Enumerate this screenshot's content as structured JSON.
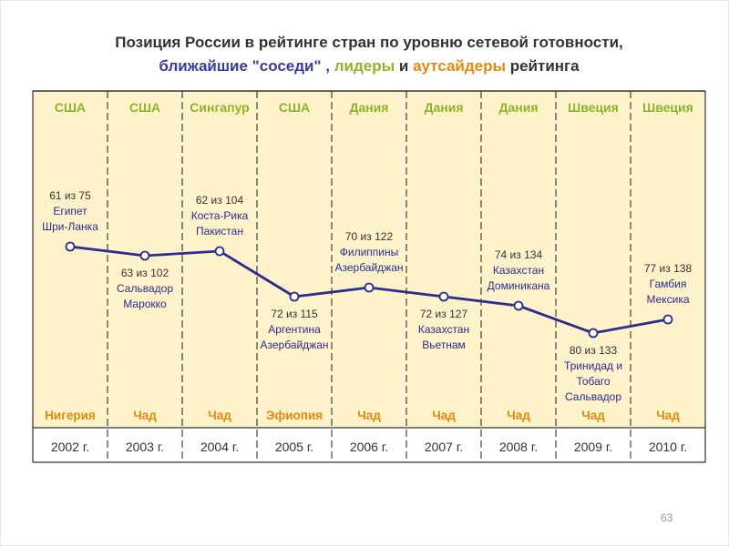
{
  "title": {
    "line1": "Позиция России в рейтинге стран по уровню сетевой готовности,",
    "line2_part1": "ближайшие \"соседи\" , ",
    "line2_part2": "лидеры",
    "line2_part3": " и ",
    "line2_part4": "аутсайдеры",
    "line2_part5": " рейтинга"
  },
  "colors": {
    "background": "#fdf2c9",
    "line": "#2e2c8c",
    "marker_fill": "#ffffff",
    "leader_text": "#8db42a",
    "outsider_text": "#e38a0e",
    "neighbor_text": "#2e2c8c",
    "rank_text": "#333333"
  },
  "chart_data": {
    "type": "line",
    "categories": [
      "2002 г.",
      "2003 г.",
      "2004 г.",
      "2005 г.",
      "2006 г.",
      "2007 г.",
      "2008 г.",
      "2009 г.",
      "2010 г."
    ],
    "series": [
      {
        "values": [
          61,
          63,
          62,
          72,
          70,
          72,
          74,
          80,
          77
        ]
      }
    ],
    "rank_labels": [
      "61 из 75",
      "63 из 102",
      "62 из 104",
      "72 из 115",
      "70 из 122",
      "72 из 127",
      "74 из 134",
      "80 из 133",
      "77 из 138"
    ],
    "neighbors": [
      [
        "Египет",
        "Шри-Ланка"
      ],
      [
        "Сальвадор",
        "Марокко"
      ],
      [
        "Коста-Рика",
        "Пакистан"
      ],
      [
        "Аргентина",
        "Азербайджан"
      ],
      [
        "Филиппины",
        "Азербайджан"
      ],
      [
        "Казахстан",
        "Вьетнам"
      ],
      [
        "Казахстан",
        "Доминикана"
      ],
      [
        "Тринидад и",
        "Тобаго",
        "Сальвадор"
      ],
      [
        "Гамбия",
        "Мексика"
      ]
    ],
    "label_position": [
      "above",
      "below",
      "above",
      "below",
      "above",
      "below",
      "above",
      "below",
      "above"
    ],
    "leaders": [
      "США",
      "США",
      "Сингапур",
      "США",
      "Дания",
      "Дания",
      "Дания",
      "Швеция",
      "Швеция"
    ],
    "outsiders": [
      "Нигерия",
      "Чад",
      "Чад",
      "Эфиопия",
      "Чад",
      "Чад",
      "Чад",
      "Чад",
      "Чад"
    ],
    "y_reversed": true,
    "grid": false
  },
  "page_number": "63"
}
